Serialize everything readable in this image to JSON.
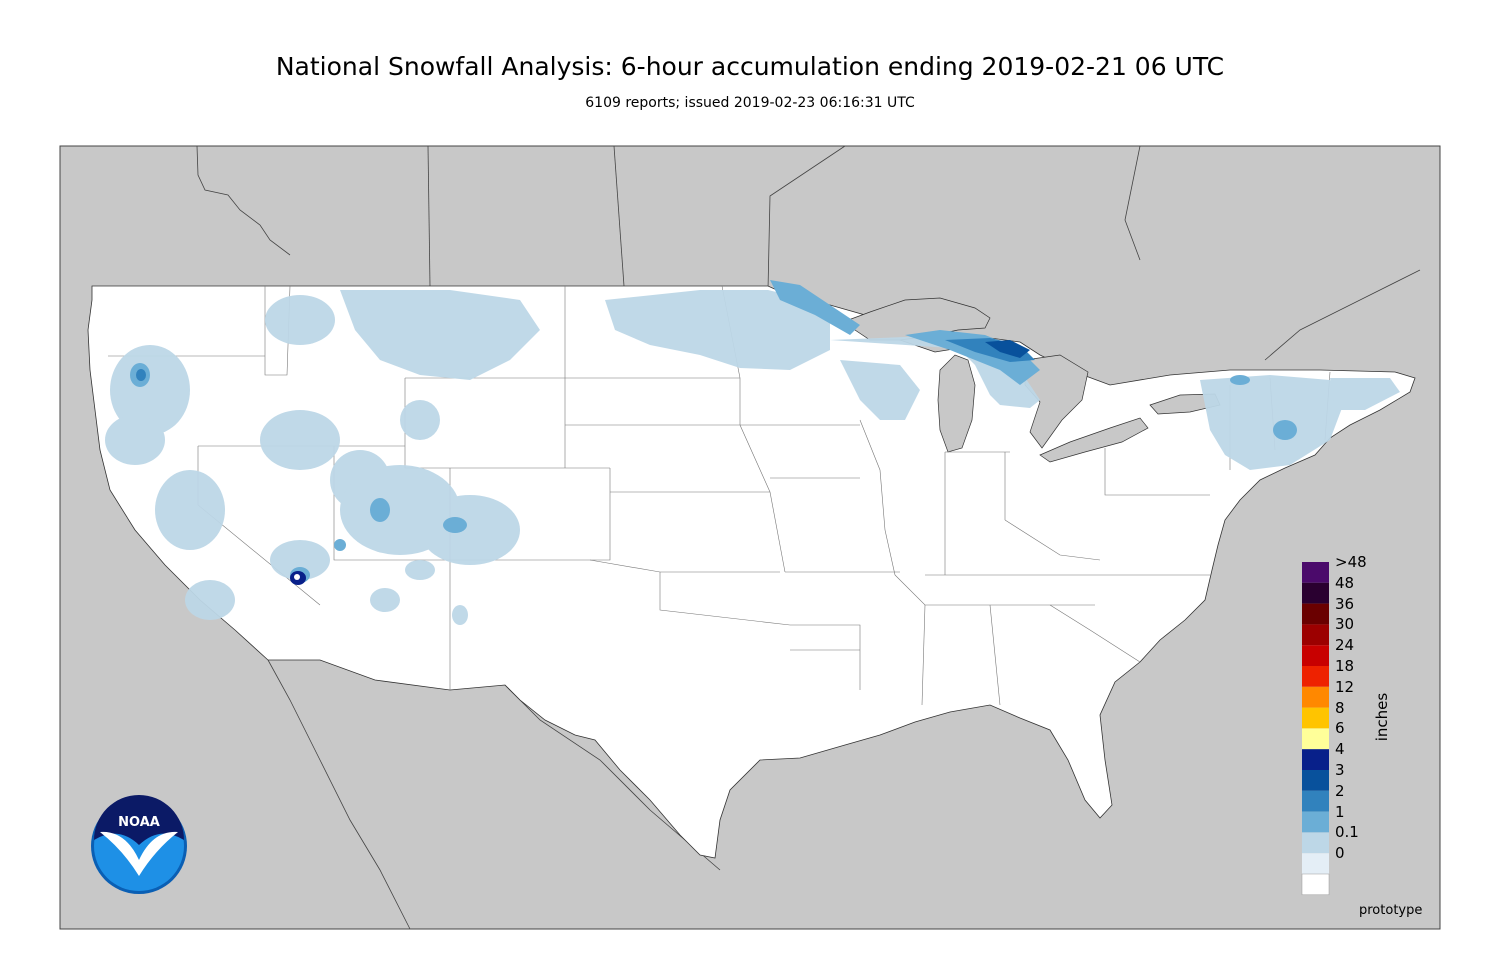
{
  "title": "National Snowfall Analysis: 6-hour accumulation ending 2019-02-21 06 UTC",
  "subtitle": "6109 reports; issued 2019-02-23 06:16:31 UTC",
  "logo_text": "NOAA",
  "footer": "prototype",
  "legend": {
    "units": "inches",
    "bins": [
      {
        "label": ">48",
        "color": "#4b0a6b"
      },
      {
        "label": "48",
        "color": "#2a0030"
      },
      {
        "label": "36",
        "color": "#6a0000"
      },
      {
        "label": "30",
        "color": "#9c0000"
      },
      {
        "label": "24",
        "color": "#c80000"
      },
      {
        "label": "18",
        "color": "#ee2200"
      },
      {
        "label": "12",
        "color": "#ff8800"
      },
      {
        "label": "8",
        "color": "#ffc400"
      },
      {
        "label": "6",
        "color": "#ffff99"
      },
      {
        "label": "4",
        "color": "#08208a"
      },
      {
        "label": "3",
        "color": "#08519c"
      },
      {
        "label": "2",
        "color": "#3182bd"
      },
      {
        "label": "1",
        "color": "#6baed6"
      },
      {
        "label": "0.1",
        "color": "#bdd7e7"
      },
      {
        "label": "0",
        "color": "#e4eef6"
      }
    ]
  },
  "colors": {
    "background_land": "#c8c8c8",
    "conus": "#ffffff",
    "lakes": "#c8c8c8",
    "border": "#555555"
  }
}
